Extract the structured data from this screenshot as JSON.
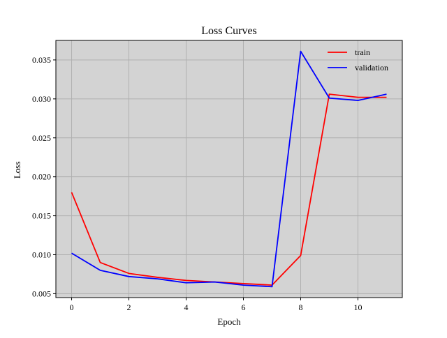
{
  "chart_data": {
    "type": "line",
    "title": "Loss Curves",
    "xlabel": "Epoch",
    "ylabel": "Loss",
    "xlim": [
      -0.55,
      11.55
    ],
    "ylim": [
      0.0045,
      0.0375
    ],
    "xticks": [
      0,
      2,
      4,
      6,
      8,
      10
    ],
    "xtick_labels": [
      "0",
      "2",
      "4",
      "6",
      "8",
      "10"
    ],
    "yticks": [
      0.005,
      0.01,
      0.015,
      0.02,
      0.025,
      0.03,
      0.035
    ],
    "ytick_labels": [
      "0.005",
      "0.010",
      "0.015",
      "0.020",
      "0.025",
      "0.030",
      "0.035"
    ],
    "grid": true,
    "legend_position": "top-right",
    "x": [
      0,
      1,
      2,
      3,
      4,
      5,
      6,
      7,
      8,
      9,
      10,
      11
    ],
    "series": [
      {
        "name": "train",
        "color": "#ff0000",
        "values": [
          0.018,
          0.009,
          0.0076,
          0.0071,
          0.0067,
          0.0065,
          0.0063,
          0.0061,
          0.0099,
          0.0306,
          0.0302,
          0.0302
        ]
      },
      {
        "name": "validation",
        "color": "#0000ff",
        "values": [
          0.0102,
          0.008,
          0.0072,
          0.0069,
          0.0064,
          0.0065,
          0.0061,
          0.0059,
          0.0361,
          0.0301,
          0.0298,
          0.0306
        ]
      }
    ],
    "colors": {
      "plot_background": "#d3d3d3",
      "grid": "#b0b0b0",
      "axes": "#000000"
    }
  }
}
